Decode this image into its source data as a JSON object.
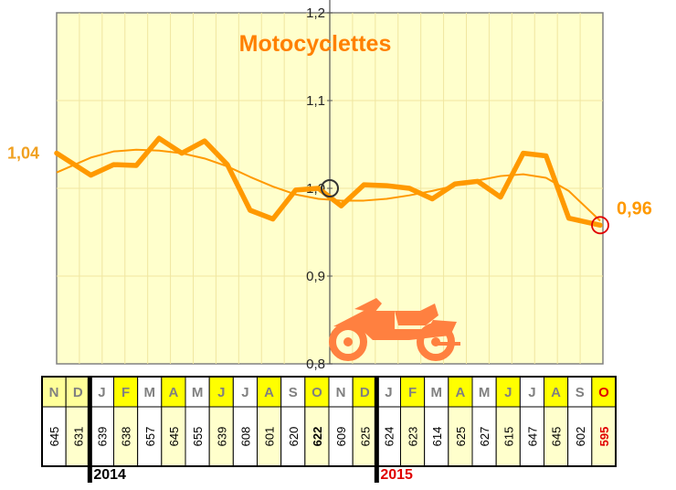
{
  "chart_data": {
    "type": "line",
    "title": "Motocyclettes",
    "y_ticks": [
      "0,8",
      "0,9",
      "1,0",
      "1,1",
      "1,2"
    ],
    "ylim": [
      0.8,
      1.2
    ],
    "grid": true,
    "start_label": "1,04",
    "end_label": "0,96",
    "months": [
      "N",
      "D",
      "J",
      "F",
      "M",
      "A",
      "M",
      "J",
      "J",
      "A",
      "S",
      "O",
      "N",
      "D",
      "J",
      "F",
      "M",
      "A",
      "M",
      "J",
      "J",
      "A",
      "S",
      "O"
    ],
    "counts": [
      "645",
      "631",
      "639",
      "638",
      "657",
      "645",
      "655",
      "639",
      "608",
      "601",
      "620",
      "622",
      "609",
      "625",
      "624",
      "623",
      "614",
      "625",
      "627",
      "615",
      "647",
      "645",
      "602",
      "595"
    ],
    "years": [
      "2014",
      "2015"
    ],
    "series": [
      {
        "values": [
          1.04,
          1.015,
          1.027,
          1.026,
          1.057,
          1.04,
          1.054,
          1.027,
          0.975,
          0.965,
          0.998,
          1.0,
          0.98,
          1.004,
          1.003,
          1.0,
          0.988,
          1.005,
          1.008,
          0.99,
          1.04,
          1.037,
          0.966,
          0.958
        ]
      },
      {
        "values": [
          1.018,
          1.035,
          1.042,
          1.044,
          1.043,
          1.04,
          1.034,
          1.025,
          1.013,
          1.002,
          0.993,
          0.988,
          0.986,
          0.986,
          0.988,
          0.992,
          0.997,
          1.003,
          1.009,
          1.014,
          1.016,
          1.012,
          0.997,
          0.963
        ]
      }
    ],
    "colors": {
      "line": "#ff9900",
      "trend": "#ff9900",
      "plot_bg": "#ffffcc",
      "grid": "#f0e6a0",
      "title": "#ff8000",
      "start_label": "#f0a020",
      "end_label": "#ff9900",
      "end_circle": "#e00000",
      "mid_circle": "#333333",
      "highlight_cell": "#ffff00",
      "alt_cell": "#ffffcc",
      "month_text": "#808080",
      "last_month": "#e00000",
      "year2015": "#e00000"
    },
    "icon": "motorcycle-icon"
  }
}
